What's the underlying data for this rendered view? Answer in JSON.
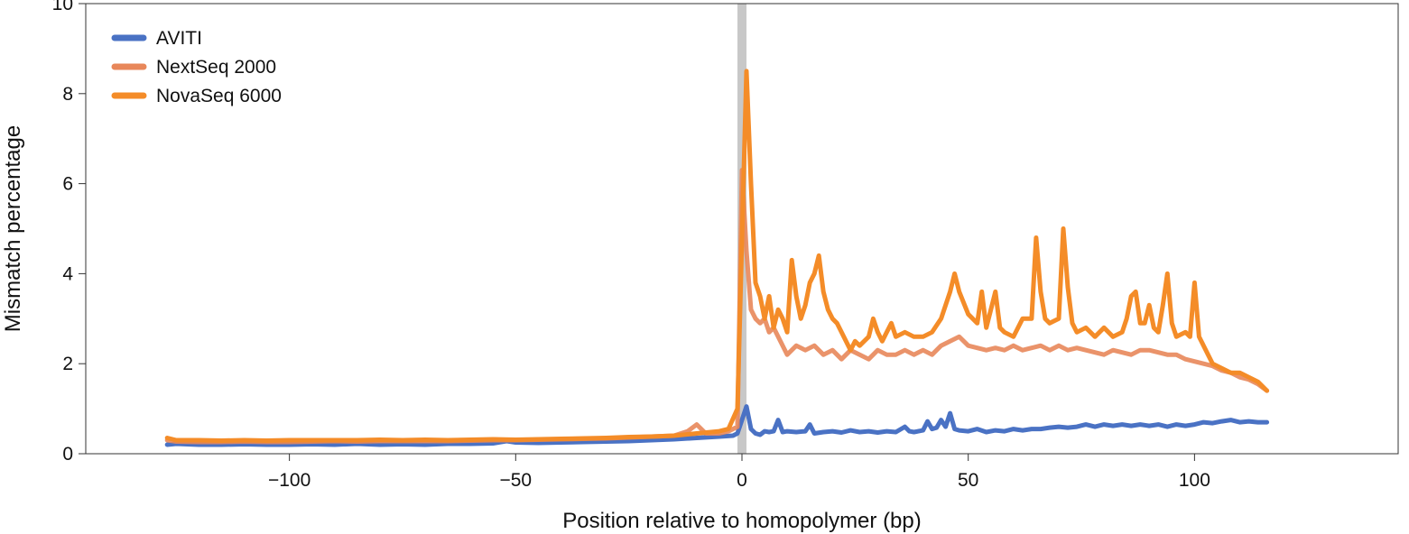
{
  "chart_data": {
    "type": "line",
    "xlabel": "Position relative to homopolymer (bp)",
    "ylabel": "Mismatch percentage",
    "xlim": [
      -145,
      145
    ],
    "ylim": [
      0,
      10
    ],
    "x_ticks": [
      -100,
      -50,
      0,
      50,
      100
    ],
    "x_tick_labels": [
      "−100",
      "−50",
      "0",
      "50",
      "100"
    ],
    "y_ticks": [
      0,
      2,
      4,
      6,
      8,
      10
    ],
    "y_tick_labels": [
      "0",
      "2",
      "4",
      "6",
      "8",
      "10"
    ],
    "highlight_band": {
      "x": 0,
      "color": "#c8c8c8"
    },
    "legend_position": "top-left",
    "series": [
      {
        "name": "AVITI",
        "color": "#4a72c4",
        "points": [
          [
            -127,
            0.2
          ],
          [
            -125,
            0.22
          ],
          [
            -120,
            0.2
          ],
          [
            -115,
            0.2
          ],
          [
            -110,
            0.21
          ],
          [
            -105,
            0.2
          ],
          [
            -100,
            0.2
          ],
          [
            -95,
            0.21
          ],
          [
            -90,
            0.2
          ],
          [
            -85,
            0.22
          ],
          [
            -80,
            0.2
          ],
          [
            -75,
            0.21
          ],
          [
            -70,
            0.2
          ],
          [
            -65,
            0.22
          ],
          [
            -60,
            0.22
          ],
          [
            -55,
            0.23
          ],
          [
            -52,
            0.28
          ],
          [
            -50,
            0.25
          ],
          [
            -45,
            0.24
          ],
          [
            -40,
            0.25
          ],
          [
            -35,
            0.26
          ],
          [
            -30,
            0.27
          ],
          [
            -25,
            0.28
          ],
          [
            -20,
            0.3
          ],
          [
            -15,
            0.32
          ],
          [
            -10,
            0.35
          ],
          [
            -5,
            0.38
          ],
          [
            -2,
            0.4
          ],
          [
            -1,
            0.45
          ],
          [
            1,
            1.05
          ],
          [
            2,
            0.55
          ],
          [
            3,
            0.45
          ],
          [
            4,
            0.42
          ],
          [
            5,
            0.5
          ],
          [
            6,
            0.48
          ],
          [
            7,
            0.5
          ],
          [
            8,
            0.75
          ],
          [
            9,
            0.48
          ],
          [
            10,
            0.5
          ],
          [
            12,
            0.48
          ],
          [
            14,
            0.5
          ],
          [
            15,
            0.65
          ],
          [
            16,
            0.45
          ],
          [
            18,
            0.48
          ],
          [
            20,
            0.5
          ],
          [
            22,
            0.47
          ],
          [
            24,
            0.52
          ],
          [
            26,
            0.48
          ],
          [
            28,
            0.5
          ],
          [
            30,
            0.47
          ],
          [
            32,
            0.5
          ],
          [
            34,
            0.48
          ],
          [
            36,
            0.6
          ],
          [
            37,
            0.5
          ],
          [
            38,
            0.48
          ],
          [
            40,
            0.52
          ],
          [
            41,
            0.72
          ],
          [
            42,
            0.55
          ],
          [
            43,
            0.58
          ],
          [
            44,
            0.75
          ],
          [
            45,
            0.6
          ],
          [
            46,
            0.9
          ],
          [
            47,
            0.55
          ],
          [
            48,
            0.52
          ],
          [
            50,
            0.5
          ],
          [
            52,
            0.55
          ],
          [
            54,
            0.48
          ],
          [
            56,
            0.52
          ],
          [
            58,
            0.5
          ],
          [
            60,
            0.55
          ],
          [
            62,
            0.52
          ],
          [
            64,
            0.55
          ],
          [
            66,
            0.55
          ],
          [
            68,
            0.58
          ],
          [
            70,
            0.6
          ],
          [
            72,
            0.58
          ],
          [
            74,
            0.6
          ],
          [
            76,
            0.65
          ],
          [
            78,
            0.6
          ],
          [
            80,
            0.65
          ],
          [
            82,
            0.62
          ],
          [
            84,
            0.65
          ],
          [
            86,
            0.62
          ],
          [
            88,
            0.65
          ],
          [
            90,
            0.62
          ],
          [
            92,
            0.65
          ],
          [
            94,
            0.6
          ],
          [
            96,
            0.65
          ],
          [
            98,
            0.62
          ],
          [
            100,
            0.65
          ],
          [
            102,
            0.7
          ],
          [
            104,
            0.68
          ],
          [
            106,
            0.72
          ],
          [
            108,
            0.75
          ],
          [
            110,
            0.7
          ],
          [
            112,
            0.72
          ],
          [
            114,
            0.7
          ],
          [
            116,
            0.7
          ]
        ]
      },
      {
        "name": "NextSeq 2000",
        "color": "#e8875a",
        "points": [
          [
            -127,
            0.3
          ],
          [
            -125,
            0.27
          ],
          [
            -120,
            0.26
          ],
          [
            -115,
            0.26
          ],
          [
            -110,
            0.27
          ],
          [
            -105,
            0.26
          ],
          [
            -100,
            0.26
          ],
          [
            -95,
            0.27
          ],
          [
            -90,
            0.28
          ],
          [
            -85,
            0.27
          ],
          [
            -80,
            0.28
          ],
          [
            -75,
            0.28
          ],
          [
            -70,
            0.28
          ],
          [
            -65,
            0.28
          ],
          [
            -60,
            0.29
          ],
          [
            -55,
            0.3
          ],
          [
            -50,
            0.3
          ],
          [
            -45,
            0.31
          ],
          [
            -40,
            0.32
          ],
          [
            -35,
            0.33
          ],
          [
            -30,
            0.34
          ],
          [
            -25,
            0.36
          ],
          [
            -20,
            0.38
          ],
          [
            -15,
            0.4
          ],
          [
            -12,
            0.5
          ],
          [
            -10,
            0.65
          ],
          [
            -8,
            0.45
          ],
          [
            -5,
            0.45
          ],
          [
            -3,
            0.5
          ],
          [
            -1,
            0.6
          ],
          [
            0,
            6.3
          ],
          [
            1,
            4.5
          ],
          [
            2,
            3.2
          ],
          [
            3,
            3.0
          ],
          [
            4,
            2.9
          ],
          [
            5,
            3.0
          ],
          [
            6,
            2.7
          ],
          [
            7,
            2.8
          ],
          [
            8,
            2.6
          ],
          [
            9,
            2.4
          ],
          [
            10,
            2.2
          ],
          [
            12,
            2.4
          ],
          [
            14,
            2.3
          ],
          [
            16,
            2.4
          ],
          [
            18,
            2.2
          ],
          [
            20,
            2.3
          ],
          [
            22,
            2.1
          ],
          [
            24,
            2.3
          ],
          [
            26,
            2.2
          ],
          [
            28,
            2.1
          ],
          [
            30,
            2.3
          ],
          [
            32,
            2.2
          ],
          [
            34,
            2.2
          ],
          [
            36,
            2.3
          ],
          [
            38,
            2.2
          ],
          [
            40,
            2.3
          ],
          [
            42,
            2.2
          ],
          [
            44,
            2.4
          ],
          [
            46,
            2.5
          ],
          [
            48,
            2.6
          ],
          [
            50,
            2.4
          ],
          [
            52,
            2.35
          ],
          [
            54,
            2.3
          ],
          [
            56,
            2.35
          ],
          [
            58,
            2.3
          ],
          [
            60,
            2.4
          ],
          [
            62,
            2.3
          ],
          [
            64,
            2.35
          ],
          [
            66,
            2.4
          ],
          [
            68,
            2.3
          ],
          [
            70,
            2.4
          ],
          [
            72,
            2.3
          ],
          [
            74,
            2.35
          ],
          [
            76,
            2.3
          ],
          [
            78,
            2.25
          ],
          [
            80,
            2.2
          ],
          [
            82,
            2.3
          ],
          [
            84,
            2.25
          ],
          [
            86,
            2.2
          ],
          [
            88,
            2.3
          ],
          [
            90,
            2.3
          ],
          [
            92,
            2.25
          ],
          [
            94,
            2.2
          ],
          [
            96,
            2.2
          ],
          [
            98,
            2.1
          ],
          [
            100,
            2.05
          ],
          [
            102,
            2.0
          ],
          [
            104,
            1.95
          ],
          [
            106,
            1.85
          ],
          [
            108,
            1.8
          ],
          [
            110,
            1.7
          ],
          [
            112,
            1.65
          ],
          [
            114,
            1.55
          ],
          [
            116,
            1.4
          ]
        ]
      },
      {
        "name": "NovaSeq 6000",
        "color": "#f48c28",
        "points": [
          [
            -127,
            0.35
          ],
          [
            -125,
            0.3
          ],
          [
            -120,
            0.3
          ],
          [
            -115,
            0.29
          ],
          [
            -110,
            0.3
          ],
          [
            -105,
            0.29
          ],
          [
            -100,
            0.3
          ],
          [
            -95,
            0.3
          ],
          [
            -90,
            0.3
          ],
          [
            -85,
            0.3
          ],
          [
            -80,
            0.31
          ],
          [
            -75,
            0.3
          ],
          [
            -70,
            0.31
          ],
          [
            -65,
            0.3
          ],
          [
            -60,
            0.31
          ],
          [
            -55,
            0.32
          ],
          [
            -50,
            0.31
          ],
          [
            -45,
            0.32
          ],
          [
            -40,
            0.33
          ],
          [
            -35,
            0.34
          ],
          [
            -30,
            0.35
          ],
          [
            -25,
            0.37
          ],
          [
            -20,
            0.38
          ],
          [
            -15,
            0.4
          ],
          [
            -10,
            0.45
          ],
          [
            -5,
            0.5
          ],
          [
            -3,
            0.55
          ],
          [
            -1,
            1.0
          ],
          [
            1,
            8.5
          ],
          [
            2,
            6.0
          ],
          [
            3,
            3.8
          ],
          [
            4,
            3.5
          ],
          [
            5,
            3.0
          ],
          [
            6,
            3.5
          ],
          [
            7,
            2.8
          ],
          [
            8,
            3.2
          ],
          [
            9,
            3.0
          ],
          [
            10,
            2.7
          ],
          [
            11,
            4.3
          ],
          [
            12,
            3.5
          ],
          [
            13,
            3.0
          ],
          [
            14,
            3.3
          ],
          [
            15,
            3.8
          ],
          [
            16,
            4.0
          ],
          [
            17,
            4.4
          ],
          [
            18,
            3.6
          ],
          [
            19,
            3.2
          ],
          [
            20,
            3.0
          ],
          [
            21,
            2.9
          ],
          [
            22,
            2.7
          ],
          [
            23,
            2.5
          ],
          [
            24,
            2.3
          ],
          [
            25,
            2.5
          ],
          [
            26,
            2.4
          ],
          [
            28,
            2.6
          ],
          [
            29,
            3.0
          ],
          [
            30,
            2.7
          ],
          [
            31,
            2.5
          ],
          [
            32,
            2.7
          ],
          [
            33,
            2.9
          ],
          [
            34,
            2.6
          ],
          [
            36,
            2.7
          ],
          [
            38,
            2.6
          ],
          [
            40,
            2.6
          ],
          [
            42,
            2.7
          ],
          [
            44,
            3.0
          ],
          [
            46,
            3.6
          ],
          [
            47,
            4.0
          ],
          [
            48,
            3.6
          ],
          [
            50,
            3.1
          ],
          [
            52,
            2.9
          ],
          [
            53,
            3.6
          ],
          [
            54,
            2.8
          ],
          [
            56,
            3.6
          ],
          [
            57,
            2.8
          ],
          [
            58,
            2.7
          ],
          [
            60,
            2.6
          ],
          [
            62,
            3.0
          ],
          [
            64,
            3.0
          ],
          [
            65,
            4.8
          ],
          [
            66,
            3.6
          ],
          [
            67,
            3.0
          ],
          [
            68,
            2.9
          ],
          [
            70,
            3.0
          ],
          [
            71,
            5.0
          ],
          [
            72,
            3.7
          ],
          [
            73,
            2.9
          ],
          [
            74,
            2.7
          ],
          [
            76,
            2.8
          ],
          [
            78,
            2.6
          ],
          [
            80,
            2.8
          ],
          [
            82,
            2.6
          ],
          [
            84,
            2.7
          ],
          [
            85,
            3.0
          ],
          [
            86,
            3.5
          ],
          [
            87,
            3.6
          ],
          [
            88,
            2.9
          ],
          [
            89,
            2.9
          ],
          [
            90,
            3.3
          ],
          [
            91,
            2.8
          ],
          [
            92,
            2.7
          ],
          [
            93,
            3.3
          ],
          [
            94,
            4.0
          ],
          [
            95,
            2.9
          ],
          [
            96,
            2.6
          ],
          [
            98,
            2.7
          ],
          [
            99,
            2.6
          ],
          [
            100,
            3.8
          ],
          [
            101,
            2.6
          ],
          [
            102,
            2.4
          ],
          [
            104,
            2.0
          ],
          [
            106,
            1.9
          ],
          [
            108,
            1.8
          ],
          [
            110,
            1.8
          ],
          [
            112,
            1.7
          ],
          [
            114,
            1.6
          ],
          [
            116,
            1.4
          ]
        ]
      }
    ]
  }
}
